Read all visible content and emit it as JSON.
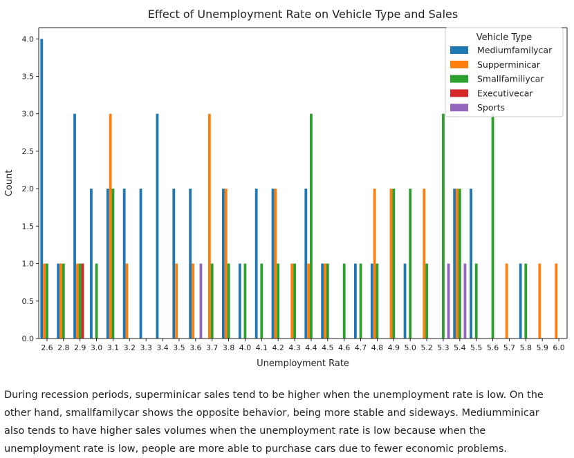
{
  "chart_data": {
    "type": "bar",
    "title": "Effect of Unemployment Rate on Vehicle Type and Sales",
    "xlabel": "Unemployment Rate",
    "ylabel": "Count",
    "ylim": [
      0,
      4.15
    ],
    "yticks": [
      "0.0",
      "0.5",
      "1.0",
      "1.5",
      "2.0",
      "2.5",
      "3.0",
      "3.5",
      "4.0"
    ],
    "grid": false,
    "legend": {
      "title": "Vehicle Type",
      "placement": "top-right"
    },
    "categories": [
      "2.6",
      "2.8",
      "2.9",
      "3.0",
      "3.1",
      "3.2",
      "3.3",
      "3.4",
      "3.5",
      "3.6",
      "3.7",
      "3.8",
      "4.0",
      "4.1",
      "4.2",
      "4.3",
      "4.4",
      "4.5",
      "4.6",
      "4.7",
      "4.8",
      "4.9",
      "5.0",
      "5.2",
      "5.3",
      "5.4",
      "5.5",
      "5.6",
      "5.7",
      "5.8",
      "5.9",
      "6.0"
    ],
    "series": [
      {
        "name": "Mediumfamilycar",
        "color": "#1f77b4",
        "values": [
          4,
          1,
          3,
          2,
          2,
          2,
          2,
          3,
          2,
          2,
          0,
          2,
          1,
          2,
          2,
          0,
          2,
          1,
          0,
          1,
          1,
          0,
          1,
          0,
          0,
          2,
          2,
          0,
          0,
          1,
          0,
          0
        ]
      },
      {
        "name": "Supperminicar",
        "color": "#ff7f0e",
        "values": [
          1,
          1,
          1,
          0,
          3,
          1,
          0,
          0,
          1,
          1,
          3,
          2,
          0,
          0,
          2,
          1,
          1,
          1,
          0,
          0,
          2,
          2,
          0,
          2,
          0,
          2,
          0,
          0,
          1,
          0,
          1,
          1
        ]
      },
      {
        "name": "Smallfamiliycar",
        "color": "#2ca02c",
        "values": [
          1,
          1,
          1,
          1,
          2,
          0,
          0,
          0,
          0,
          0,
          1,
          1,
          1,
          1,
          1,
          1,
          3,
          1,
          1,
          1,
          1,
          2,
          2,
          1,
          3,
          2,
          1,
          3,
          0,
          1,
          0,
          0
        ]
      },
      {
        "name": "Executivecar",
        "color": "#d62728",
        "values": [
          0,
          0,
          1,
          0,
          0,
          0,
          0,
          0,
          0,
          0,
          0,
          0,
          0,
          0,
          0,
          0,
          0,
          0,
          0,
          0,
          0,
          0,
          0,
          0,
          0,
          0,
          0,
          0,
          0,
          0,
          0,
          0
        ]
      },
      {
        "name": "Sports",
        "color": "#9467bd",
        "values": [
          0,
          0,
          0,
          0,
          0,
          0,
          0,
          0,
          0,
          1,
          0,
          0,
          0,
          0,
          0,
          0,
          0,
          0,
          0,
          0,
          0,
          0,
          0,
          0,
          1,
          1,
          0,
          0,
          0,
          0,
          0,
          0
        ]
      }
    ]
  },
  "caption": "During recession periods, superminicar sales tend to be higher when the unemployment rate is low. On the other hand, smallfamilycar shows the opposite behavior, being more stable and sideways. Mediumminicar also tends to have higher sales volumes when the unemployment rate is low because when the unemployment rate is low, people are more able to purchase cars due to fewer economic problems."
}
